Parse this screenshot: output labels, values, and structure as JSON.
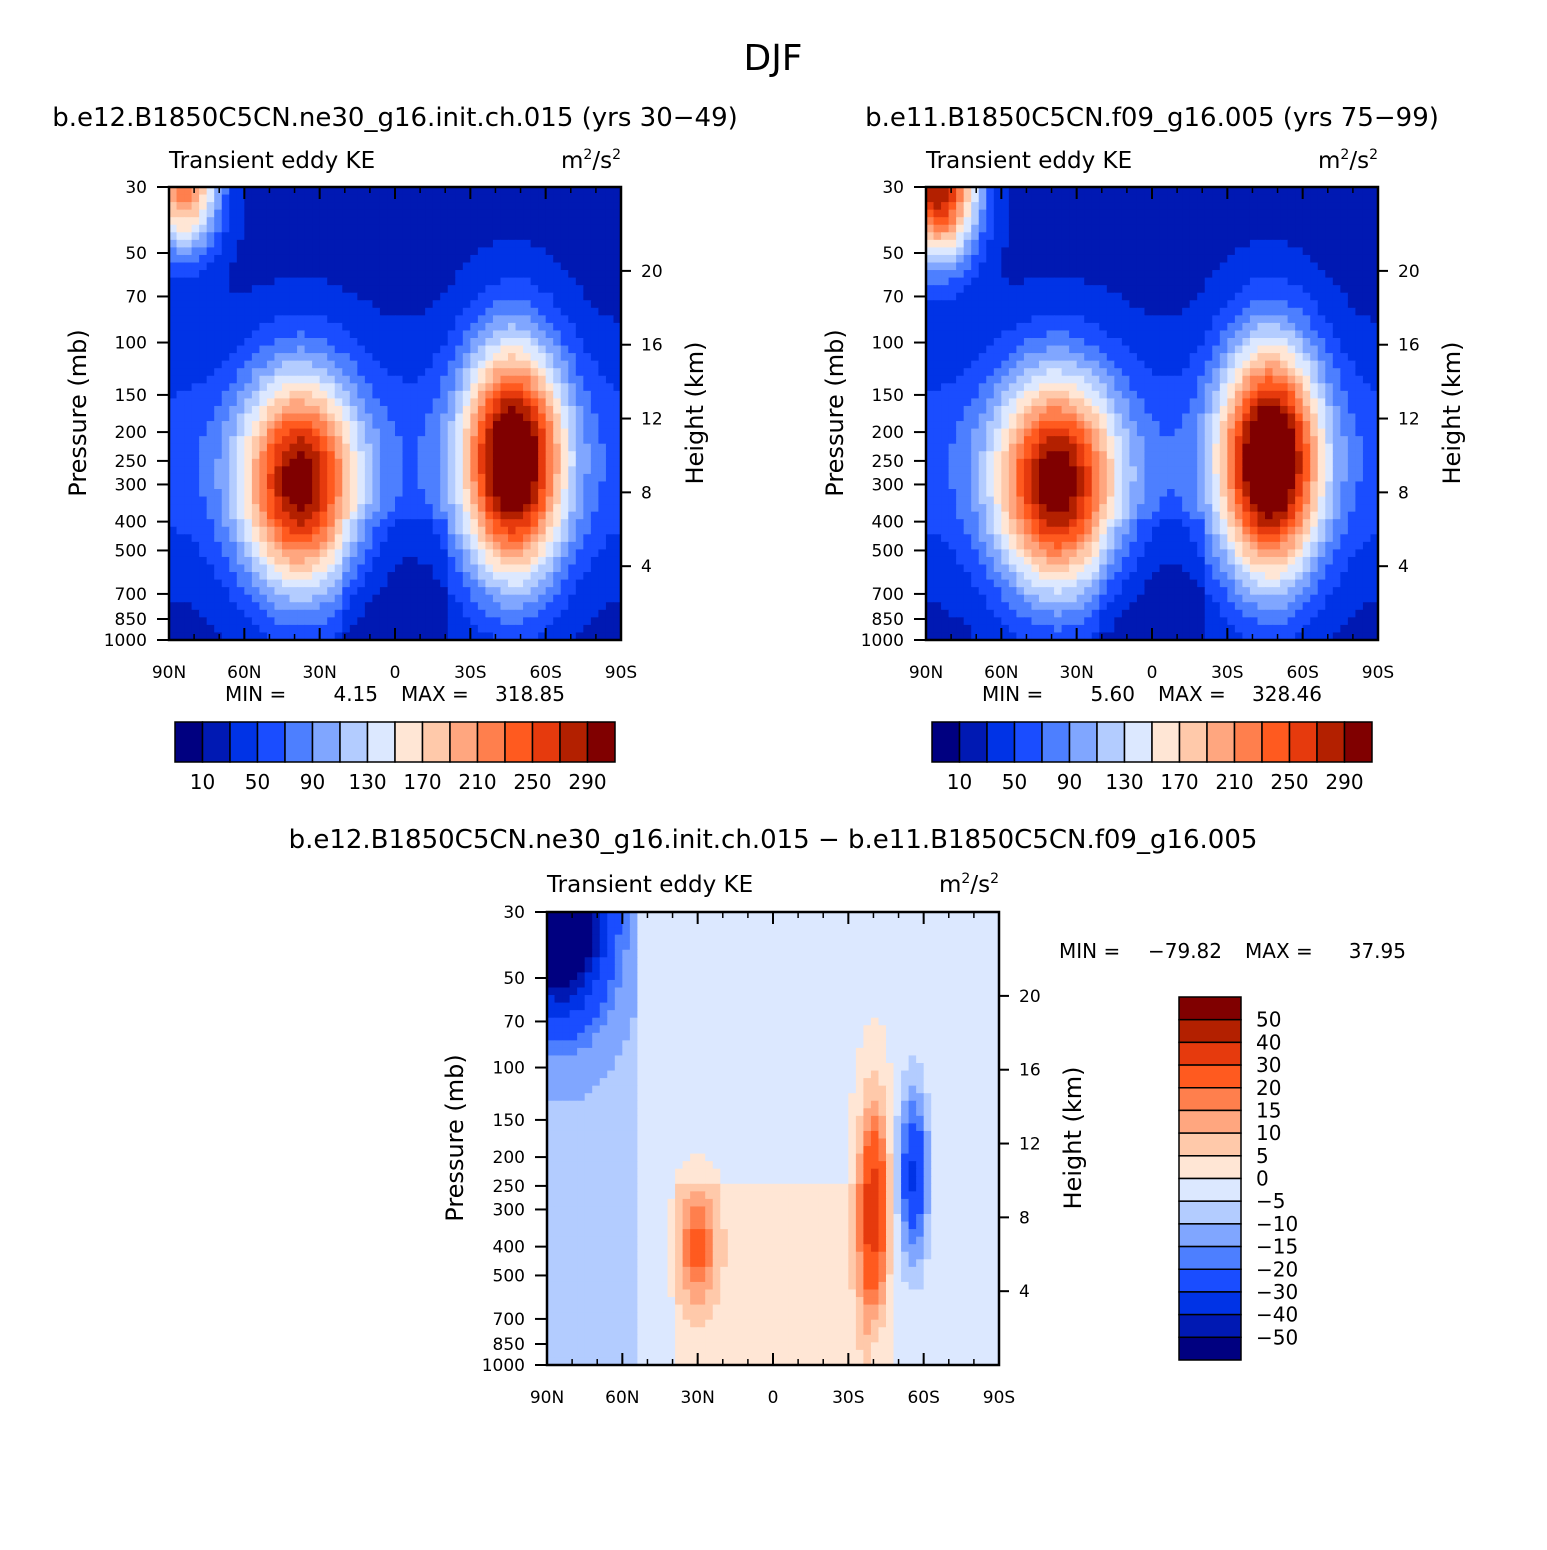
{
  "page": {
    "title": "DJF"
  },
  "colors": {
    "scale": [
      "#000080",
      "#0019b3",
      "#0033e6",
      "#1a4dff",
      "#4d7fff",
      "#80a6ff",
      "#b3ccff",
      "#dce8ff",
      "#ffe6d5",
      "#ffc9aa",
      "#ffa67f",
      "#ff7f4d",
      "#ff5a1f",
      "#e63a0d",
      "#b32000",
      "#800000"
    ],
    "diff_scale": [
      "#000080",
      "#0019b3",
      "#0033e6",
      "#1a4dff",
      "#4d7fff",
      "#80a6ff",
      "#b3ccff",
      "#dce8ff",
      "#ffe6d5",
      "#ffc9aa",
      "#ffa67f",
      "#ff7f4d",
      "#ff5a1f",
      "#e63a0d",
      "#b32000",
      "#800000"
    ]
  },
  "chart_data": [
    {
      "id": "panel1",
      "type": "heatmap",
      "title": "b.e12.B1850C5CN.ne30_g16.init.ch.015 (yrs 30-49)",
      "variable": "Transient eddy KE",
      "units_base": "m",
      "units_over": "/s",
      "units_exp": "2",
      "xlabel": "",
      "ylabel": "Pressure (mb)",
      "ylabel2": "Height (km)",
      "xticks": [
        "90N",
        "60N",
        "30N",
        "0",
        "30S",
        "60S",
        "90S"
      ],
      "yticks": [
        "30",
        "50",
        "70",
        "100",
        "150",
        "200",
        "250",
        "300",
        "400",
        "500",
        "700",
        "850",
        "1000"
      ],
      "y2ticks": [
        "20",
        "16",
        "12",
        "8",
        "4"
      ],
      "min_label": "MIN =",
      "min_value": "4.15",
      "max_label": "MAX =",
      "max_value": "318.85",
      "colorbar_labels": [
        "10",
        "50",
        "90",
        "130",
        "170",
        "210",
        "250",
        "290"
      ],
      "colorbar_levels": [
        10,
        30,
        50,
        70,
        90,
        110,
        130,
        150,
        170,
        190,
        210,
        230,
        250,
        270,
        290
      ],
      "features": [
        {
          "kind": "jet",
          "lat": -47,
          "p": 250,
          "peak": 318.85,
          "lat_width": 14,
          "log_width": 0.65
        },
        {
          "kind": "jet",
          "lat": 38,
          "p": 300,
          "peak": 280,
          "lat_width": 16,
          "log_width": 0.6
        },
        {
          "kind": "polar_vortex",
          "lat": 84,
          "p": 30,
          "peak": 230,
          "lat_width": 10,
          "log_width": 0.35
        }
      ]
    },
    {
      "id": "panel2",
      "type": "heatmap",
      "title": "b.e11.B1850C5CN.f09_g16.005 (yrs 75-99)",
      "variable": "Transient eddy KE",
      "units_base": "m",
      "units_over": "/s",
      "units_exp": "2",
      "xlabel": "",
      "ylabel": "Pressure (mb)",
      "ylabel2": "Height (km)",
      "xticks": [
        "90N",
        "60N",
        "30N",
        "0",
        "30S",
        "60S",
        "90S"
      ],
      "yticks": [
        "30",
        "50",
        "70",
        "100",
        "150",
        "200",
        "250",
        "300",
        "400",
        "500",
        "700",
        "850",
        "1000"
      ],
      "y2ticks": [
        "20",
        "16",
        "12",
        "8",
        "4"
      ],
      "min_label": "MIN =",
      "min_value": "5.60",
      "max_label": "MAX =",
      "max_value": "328.46",
      "colorbar_labels": [
        "10",
        "50",
        "90",
        "130",
        "170",
        "210",
        "250",
        "290"
      ],
      "colorbar_levels": [
        10,
        30,
        50,
        70,
        90,
        110,
        130,
        150,
        170,
        190,
        210,
        230,
        250,
        270,
        290
      ],
      "features": [
        {
          "kind": "jet",
          "lat": -47,
          "p": 250,
          "peak": 328.46,
          "lat_width": 14,
          "log_width": 0.65
        },
        {
          "kind": "jet",
          "lat": 38,
          "p": 300,
          "peak": 285,
          "lat_width": 17,
          "log_width": 0.6
        },
        {
          "kind": "polar_vortex",
          "lat": 85,
          "p": 30,
          "peak": 300,
          "lat_width": 11,
          "log_width": 0.4
        }
      ]
    },
    {
      "id": "diff",
      "type": "heatmap",
      "title": "b.e12.B1850C5CN.ne30_g16.init.ch.015 - b.e11.B1850C5CN.f09_g16.005",
      "variable": "Transient eddy KE",
      "units_base": "m",
      "units_over": "/s",
      "units_exp": "2",
      "xlabel": "",
      "ylabel": "Pressure (mb)",
      "ylabel2": "Height (km)",
      "xticks": [
        "90N",
        "60N",
        "30N",
        "0",
        "30S",
        "60S",
        "90S"
      ],
      "yticks": [
        "30",
        "50",
        "70",
        "100",
        "150",
        "200",
        "250",
        "300",
        "400",
        "500",
        "700",
        "850",
        "1000"
      ],
      "y2ticks": [
        "20",
        "16",
        "12",
        "8",
        "4"
      ],
      "min_label": "MIN =",
      "min_value": "-79.82",
      "max_label": "MAX =",
      "max_value": "37.95",
      "colorbar_labels": [
        "50",
        "40",
        "30",
        "20",
        "15",
        "10",
        "5",
        "0",
        "-5",
        "-10",
        "-15",
        "-20",
        "-30",
        "-40",
        "-50"
      ],
      "colorbar_levels": [
        -50,
        -40,
        -30,
        -20,
        -15,
        -10,
        -5,
        0,
        5,
        10,
        15,
        20,
        30,
        40,
        50
      ],
      "features": [
        {
          "kind": "dipole_pos",
          "lat": -40,
          "p": 300,
          "peak": 37.95,
          "lat_width": 4,
          "log_width": 0.55
        },
        {
          "kind": "dipole_neg",
          "lat": -56,
          "p": 230,
          "peak": -30,
          "lat_width": 4,
          "log_width": 0.45
        },
        {
          "kind": "pos",
          "lat": 30,
          "p": 400,
          "peak": 20,
          "lat_width": 5,
          "log_width": 0.3
        },
        {
          "kind": "neg",
          "lat": 85,
          "p": 30,
          "peak": -79.82,
          "lat_width": 12,
          "log_width": 0.5
        }
      ]
    }
  ]
}
